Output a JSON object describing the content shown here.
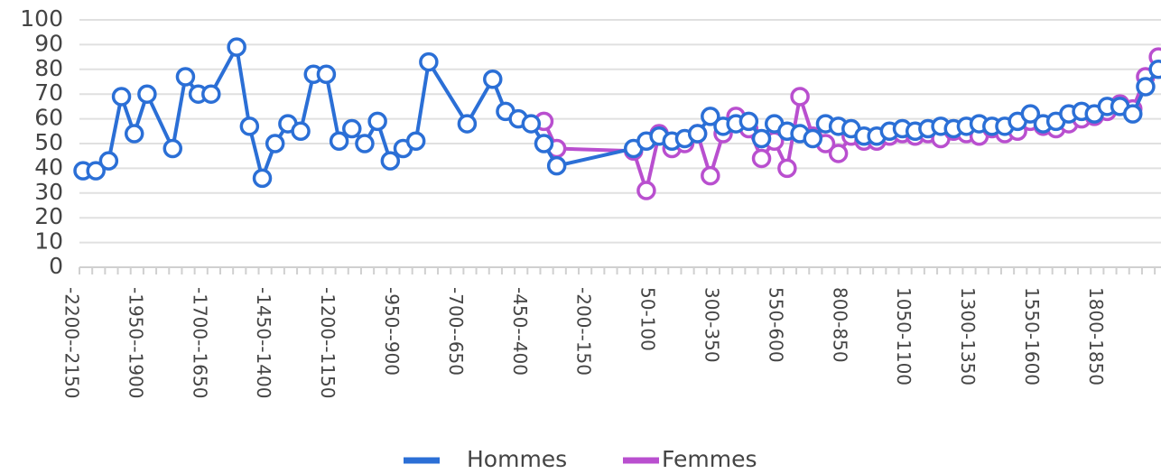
{
  "chart_data": {
    "type": "line",
    "categories": [
      "-2200--2150",
      null,
      null,
      null,
      null,
      "-1950--1900",
      null,
      null,
      null,
      null,
      "-1700--1650",
      null,
      null,
      null,
      null,
      "-1450--1400",
      null,
      null,
      null,
      null,
      "-1200--1150",
      null,
      null,
      null,
      null,
      "-950--900",
      null,
      null,
      null,
      null,
      "-700--650",
      null,
      null,
      null,
      null,
      "-450--400",
      null,
      null,
      null,
      null,
      "-200--150",
      null,
      null,
      null,
      null,
      "50-100",
      null,
      null,
      null,
      null,
      "300-350",
      null,
      null,
      null,
      null,
      "550-600",
      null,
      null,
      null,
      null,
      "800-850",
      null,
      null,
      null,
      null,
      "1050-1100",
      null,
      null,
      null,
      null,
      "1300-1350",
      null,
      null,
      null,
      null,
      "1550-1600",
      null,
      null,
      null,
      null,
      "1800-1850",
      null,
      null,
      null,
      null
    ],
    "series": [
      {
        "name": "Hommes",
        "color": "#2b6fd6",
        "values": [
          39,
          39,
          43,
          69,
          54,
          70,
          null,
          48,
          77,
          70,
          70,
          null,
          89,
          57,
          36,
          50,
          58,
          55,
          78,
          78,
          51,
          56,
          50,
          59,
          43,
          48,
          51,
          83,
          null,
          null,
          58,
          null,
          76,
          63,
          60,
          58,
          50,
          41,
          null,
          null,
          null,
          null,
          null,
          48,
          51,
          53,
          51,
          52,
          54,
          61,
          57,
          58,
          59,
          52,
          58,
          55,
          54,
          52,
          58,
          57,
          56,
          53,
          53,
          55,
          56,
          55,
          56,
          57,
          56,
          57,
          58,
          57,
          57,
          59,
          62,
          58,
          59,
          62,
          63,
          62,
          65,
          65,
          62,
          73,
          80
        ]
      },
      {
        "name": "Femmes",
        "color": "#b94fcf",
        "values": [
          null,
          null,
          null,
          null,
          null,
          null,
          null,
          null,
          null,
          null,
          null,
          null,
          null,
          null,
          null,
          null,
          null,
          null,
          null,
          null,
          null,
          null,
          null,
          null,
          null,
          null,
          null,
          null,
          null,
          null,
          null,
          null,
          null,
          null,
          null,
          null,
          59,
          48,
          null,
          null,
          null,
          null,
          null,
          47,
          31,
          54,
          48,
          50,
          54,
          37,
          54,
          61,
          56,
          44,
          51,
          40,
          69,
          53,
          50,
          46,
          53,
          51,
          51,
          53,
          54,
          53,
          54,
          52,
          55,
          54,
          53,
          56,
          54,
          55,
          59,
          57,
          56,
          58,
          60,
          61,
          63,
          66,
          64,
          77,
          85
        ]
      }
    ],
    "ylim": [
      0,
      100
    ],
    "yticks": [
      0,
      10,
      20,
      30,
      40,
      50,
      60,
      70,
      80,
      90,
      100
    ],
    "grid": true,
    "span_gaps": true,
    "legend": "bottom"
  }
}
